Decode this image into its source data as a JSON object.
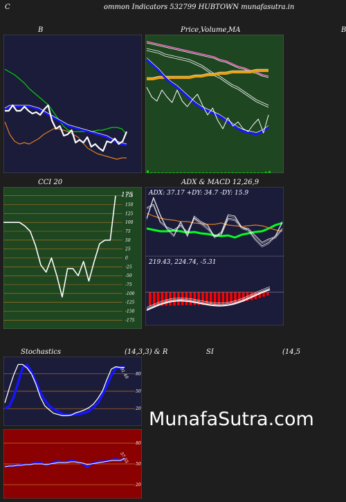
{
  "header": {
    "left": "C",
    "title": "ommon  Indicators 532799 HUBTOWN  munafasutra.in"
  },
  "bb_panel": {
    "label": "B"
  },
  "price_panel": {
    "label_price": "Price,",
    "label_volume": "Volume,",
    "label_ma": "MA",
    "edge_label": "B"
  },
  "cci_panel": {
    "label": "CCI 20",
    "value_label": "175"
  },
  "adx_panel": {
    "label": "ADX  & MACD 12,26,9",
    "values": "ADX: 37.17 +DY: 34.7 -DY: 15.9"
  },
  "macd_panel": {
    "values": "219.43,  224.74,  -5.31"
  },
  "stoch_panel": {
    "label_left": "Stochastics",
    "label_mid": "(14,3,3) & R",
    "value_label": "91.48"
  },
  "rsi_panel": {
    "label_mid": "SI",
    "label_right": "(14,5",
    "value_label": "57.55"
  },
  "watermark": "MunafaSutra.com",
  "colors": {
    "page_bg": "#1e1e1e",
    "bb_bg": "#1b1b3a",
    "price_bg": "#1e4620",
    "cci_bg": "#1e4620",
    "adx_bg": "#1b1b3a",
    "stoch_bg": "#1b1b3a",
    "rsi_bg": "#8b0000",
    "grid_orange": "#c07820",
    "blue": "#1515ff",
    "green_line": "#00d400",
    "orange_line": "#e08020",
    "white": "#ffffff",
    "red_bar": "#ff0000",
    "pink": "#ff66cc"
  },
  "chart_data": [
    {
      "type": "line",
      "name": "bollinger",
      "series": [
        {
          "role": "upper",
          "color": "#00d400",
          "values": [
            0.75,
            0.73,
            0.71,
            0.68,
            0.65,
            0.61,
            0.58,
            0.55,
            0.52,
            0.49,
            0.44,
            0.39,
            0.34,
            0.31,
            0.3,
            0.3,
            0.3,
            0.3,
            0.3,
            0.31,
            0.31,
            0.32,
            0.33,
            0.33,
            0.32,
            0.28
          ]
        },
        {
          "role": "middle",
          "color": "#1515ff",
          "values": [
            0.46,
            0.48,
            0.48,
            0.48,
            0.48,
            0.48,
            0.47,
            0.46,
            0.44,
            0.42,
            0.4,
            0.38,
            0.36,
            0.34,
            0.33,
            0.32,
            0.31,
            0.3,
            0.29,
            0.28,
            0.27,
            0.26,
            0.24,
            0.22,
            0.21,
            0.2
          ]
        },
        {
          "role": "lower",
          "color": "#e08020",
          "values": [
            0.37,
            0.28,
            0.23,
            0.21,
            0.22,
            0.21,
            0.23,
            0.25,
            0.28,
            0.3,
            0.32,
            0.32,
            0.31,
            0.3,
            0.28,
            0.26,
            0.22,
            0.18,
            0.16,
            0.14,
            0.13,
            0.12,
            0.11,
            0.1,
            0.11,
            0.11
          ]
        },
        {
          "role": "close",
          "color": "#ffffff",
          "values": [
            0.45,
            0.45,
            0.49,
            0.45,
            0.45,
            0.48,
            0.45,
            0.43,
            0.44,
            0.42,
            0.46,
            0.49,
            0.38,
            0.32,
            0.34,
            0.27,
            0.28,
            0.31,
            0.22,
            0.24,
            0.22,
            0.26,
            0.19,
            0.21,
            0.18,
            0.16,
            0.23,
            0.22,
            0.25,
            0.21,
            0.23,
            0.3
          ]
        }
      ]
    },
    {
      "type": "line",
      "name": "price_ma",
      "series": [
        {
          "role": "ma_pink",
          "color": "#ff66cc",
          "values": [
            0.95,
            0.94,
            0.93,
            0.92,
            0.91,
            0.9,
            0.89,
            0.88,
            0.87,
            0.86,
            0.85,
            0.84,
            0.82,
            0.81,
            0.79,
            0.77,
            0.76,
            0.74,
            0.73,
            0.71,
            0.7
          ]
        },
        {
          "role": "ma_white",
          "color": "#ffffff",
          "values": [
            0.9,
            0.89,
            0.88,
            0.86,
            0.85,
            0.84,
            0.83,
            0.82,
            0.8,
            0.78,
            0.75,
            0.72,
            0.7,
            0.67,
            0.64,
            0.62,
            0.59,
            0.56,
            0.53,
            0.51,
            0.49
          ]
        },
        {
          "role": "ma_orange",
          "color": "#e8a010",
          "values": [
            0.68,
            0.68,
            0.69,
            0.69,
            0.69,
            0.69,
            0.69,
            0.69,
            0.7,
            0.7,
            0.71,
            0.71,
            0.72,
            0.72,
            0.73,
            0.73,
            0.73,
            0.73,
            0.74,
            0.74,
            0.74
          ]
        },
        {
          "role": "ma_blue",
          "color": "#1515ff",
          "values": [
            0.82,
            0.78,
            0.74,
            0.69,
            0.65,
            0.62,
            0.58,
            0.54,
            0.5,
            0.47,
            0.45,
            0.43,
            0.41,
            0.38,
            0.35,
            0.32,
            0.3,
            0.29,
            0.28,
            0.3,
            0.33
          ]
        },
        {
          "role": "close",
          "color": "#ffffff",
          "values": [
            0.62,
            0.55,
            0.52,
            0.6,
            0.55,
            0.51,
            0.6,
            0.52,
            0.48,
            0.53,
            0.57,
            0.49,
            0.42,
            0.47,
            0.38,
            0.32,
            0.4,
            0.34,
            0.37,
            0.32,
            0.3,
            0.35,
            0.39,
            0.29,
            0.42
          ]
        }
      ],
      "volume": [
        0.4,
        0.1,
        0.1,
        0.1,
        0.1,
        0.1,
        0.1,
        0.1,
        0.1,
        0.1,
        0.1,
        0.1,
        0.1,
        0.1,
        0.1,
        0.1,
        0.1,
        0.1,
        0.1,
        0.1,
        0.1,
        0.1,
        0.1,
        0.1,
        0.1,
        0.1,
        0.1,
        0.1,
        0.1,
        0.1,
        0.1,
        0.1,
        0.2,
        0.3
      ]
    },
    {
      "type": "line",
      "name": "cci",
      "yticks": [
        175,
        150,
        125,
        100,
        75,
        50,
        25,
        0,
        -25,
        -50,
        -75,
        -100,
        -125,
        -150,
        -175
      ],
      "ylim": [
        -190,
        190
      ],
      "values": [
        100,
        100,
        100,
        100,
        90,
        75,
        35,
        -20,
        -40,
        0,
        -50,
        -110,
        -30,
        -30,
        -50,
        -10,
        -65,
        -10,
        40,
        50,
        50,
        175
      ]
    },
    {
      "type": "line",
      "name": "adx",
      "series": [
        {
          "role": "adx",
          "color": "#00ff20",
          "values": [
            0.4,
            0.38,
            0.36,
            0.36,
            0.37,
            0.36,
            0.34,
            0.35,
            0.33,
            0.32,
            0.3,
            0.29,
            0.3,
            0.27,
            0.31,
            0.33,
            0.35,
            0.36,
            0.4,
            0.45,
            0.48
          ]
        },
        {
          "role": "orange",
          "color": "#e08020",
          "values": [
            0.62,
            0.58,
            0.55,
            0.53,
            0.52,
            0.5,
            0.5,
            0.48,
            0.47,
            0.46,
            0.46,
            0.48,
            0.45,
            0.44,
            0.43,
            0.44,
            0.45,
            0.44,
            0.41,
            0.38,
            0.36
          ]
        },
        {
          "role": "plus_di",
          "color": "#ffffff",
          "values": [
            0.7,
            0.75,
            0.5,
            0.42,
            0.38,
            0.45,
            0.35,
            0.55,
            0.48,
            0.4,
            0.3,
            0.32,
            0.55,
            0.53,
            0.42,
            0.4,
            0.3,
            0.2,
            0.25,
            0.28,
            0.4
          ]
        },
        {
          "role": "minus_di",
          "color": "#ffffff",
          "values": [
            0.55,
            0.85,
            0.6,
            0.4,
            0.3,
            0.5,
            0.3,
            0.58,
            0.5,
            0.45,
            0.28,
            0.35,
            0.6,
            0.58,
            0.42,
            0.38,
            0.25,
            0.15,
            0.2,
            0.3,
            0.5
          ]
        }
      ]
    },
    {
      "type": "bar",
      "name": "macd_histogram",
      "values": [
        0.9,
        0.9,
        0.9,
        0.9,
        0.88,
        0.88,
        0.88,
        0.86,
        0.86,
        0.85,
        0.85,
        0.85,
        0.84,
        0.84,
        0.84,
        0.84,
        0.83,
        0.82,
        0.8,
        0.78,
        0.75,
        0.72,
        0.68,
        0.63,
        0.58,
        0.52,
        0.46,
        0.38,
        0.3,
        0.22
      ]
    },
    {
      "type": "line",
      "name": "stochastics",
      "yticks": [
        80,
        50,
        20
      ],
      "series": [
        {
          "role": "k",
          "color": "#1515ff",
          "values": [
            20,
            24,
            40,
            65,
            90,
            95,
            84,
            66,
            48,
            35,
            25,
            19,
            15,
            11,
            9,
            10,
            10,
            11,
            13,
            16,
            22,
            30,
            44,
            60,
            77,
            90,
            91,
            91
          ]
        },
        {
          "role": "d",
          "color": "#ffffff",
          "values": [
            30,
            55,
            78,
            96,
            96,
            90,
            80,
            62,
            40,
            25,
            18,
            12,
            10,
            8,
            8,
            9,
            13,
            15,
            18,
            22,
            28,
            38,
            50,
            70,
            88,
            92,
            91,
            91
          ]
        }
      ]
    },
    {
      "type": "line",
      "name": "rsi",
      "yticks": [
        80,
        50,
        20
      ],
      "series": [
        {
          "role": "rsi",
          "color": "#1515ff",
          "values": [
            47,
            46,
            48,
            47,
            49,
            50,
            49,
            51,
            52,
            51,
            48,
            50,
            53,
            54,
            52,
            53,
            55,
            54,
            52,
            50,
            45,
            50,
            52,
            54,
            53,
            55,
            56,
            57,
            55,
            58
          ]
        },
        {
          "role": "mrsi",
          "color": "#ffffff",
          "values": [
            46,
            47,
            47,
            48,
            48,
            49,
            49,
            50,
            50,
            50,
            49,
            50,
            51,
            52,
            52,
            52,
            53,
            53,
            52,
            51,
            49,
            50,
            51,
            52,
            53,
            54,
            55,
            55,
            55,
            58
          ]
        }
      ]
    }
  ]
}
